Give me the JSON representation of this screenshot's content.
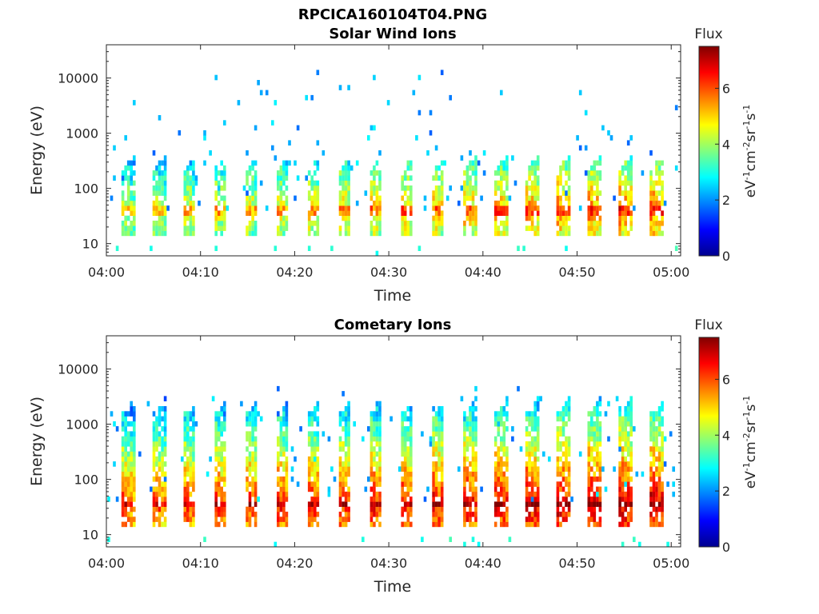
{
  "figure_title": "RPCICA160104T04.PNG",
  "chart_data": [
    {
      "type": "heatmap",
      "title": "Solar Wind Ions",
      "xlabel": "Time",
      "ylabel": "Energy (eV)",
      "y_scale": "log",
      "ylim": [
        6,
        40000
      ],
      "x_ticks": [
        "04:00",
        "04:10",
        "04:20",
        "04:30",
        "04:40",
        "04:50",
        "05:00"
      ],
      "y_ticks": [
        "10",
        "100",
        "1000",
        "10000"
      ],
      "xlim_minutes": [
        0,
        61
      ],
      "colorbar": {
        "title": "Flux",
        "label": "eV-1cm-2sr-1s-1",
        "range": [
          0,
          7.5
        ],
        "ticks": [
          "0",
          "2",
          "4",
          "6"
        ],
        "colormap": "jet"
      },
      "ion_bursts": {
        "period_min": 3.3,
        "first_burst_min": 1.5,
        "peak_flux_early": 4.5,
        "peak_flux_late": 6.0,
        "peak_energy_ev": 40,
        "top_energy_ev": 200,
        "sparse_counts_max_ev": 15000
      }
    },
    {
      "type": "heatmap",
      "title": "Cometary Ions",
      "xlabel": "Time",
      "ylabel": "Energy (eV)",
      "y_scale": "log",
      "ylim": [
        6,
        40000
      ],
      "x_ticks": [
        "04:00",
        "04:10",
        "04:20",
        "04:30",
        "04:40",
        "04:50",
        "05:00"
      ],
      "y_ticks": [
        "10",
        "100",
        "1000",
        "10000"
      ],
      "xlim_minutes": [
        0,
        61
      ],
      "colorbar": {
        "title": "Flux",
        "label": "eV-1cm-2sr-1s-1",
        "range": [
          0,
          7.5
        ],
        "ticks": [
          "0",
          "2",
          "4",
          "6"
        ],
        "colormap": "jet"
      },
      "ion_bursts": {
        "period_min": 3.3,
        "first_burst_min": 1.5,
        "peak_flux_early": 6.2,
        "peak_flux_late": 7.2,
        "peak_energy_ev": 35,
        "top_energy_ev": 1500,
        "sparse_counts_max_ev": 5000
      }
    }
  ]
}
